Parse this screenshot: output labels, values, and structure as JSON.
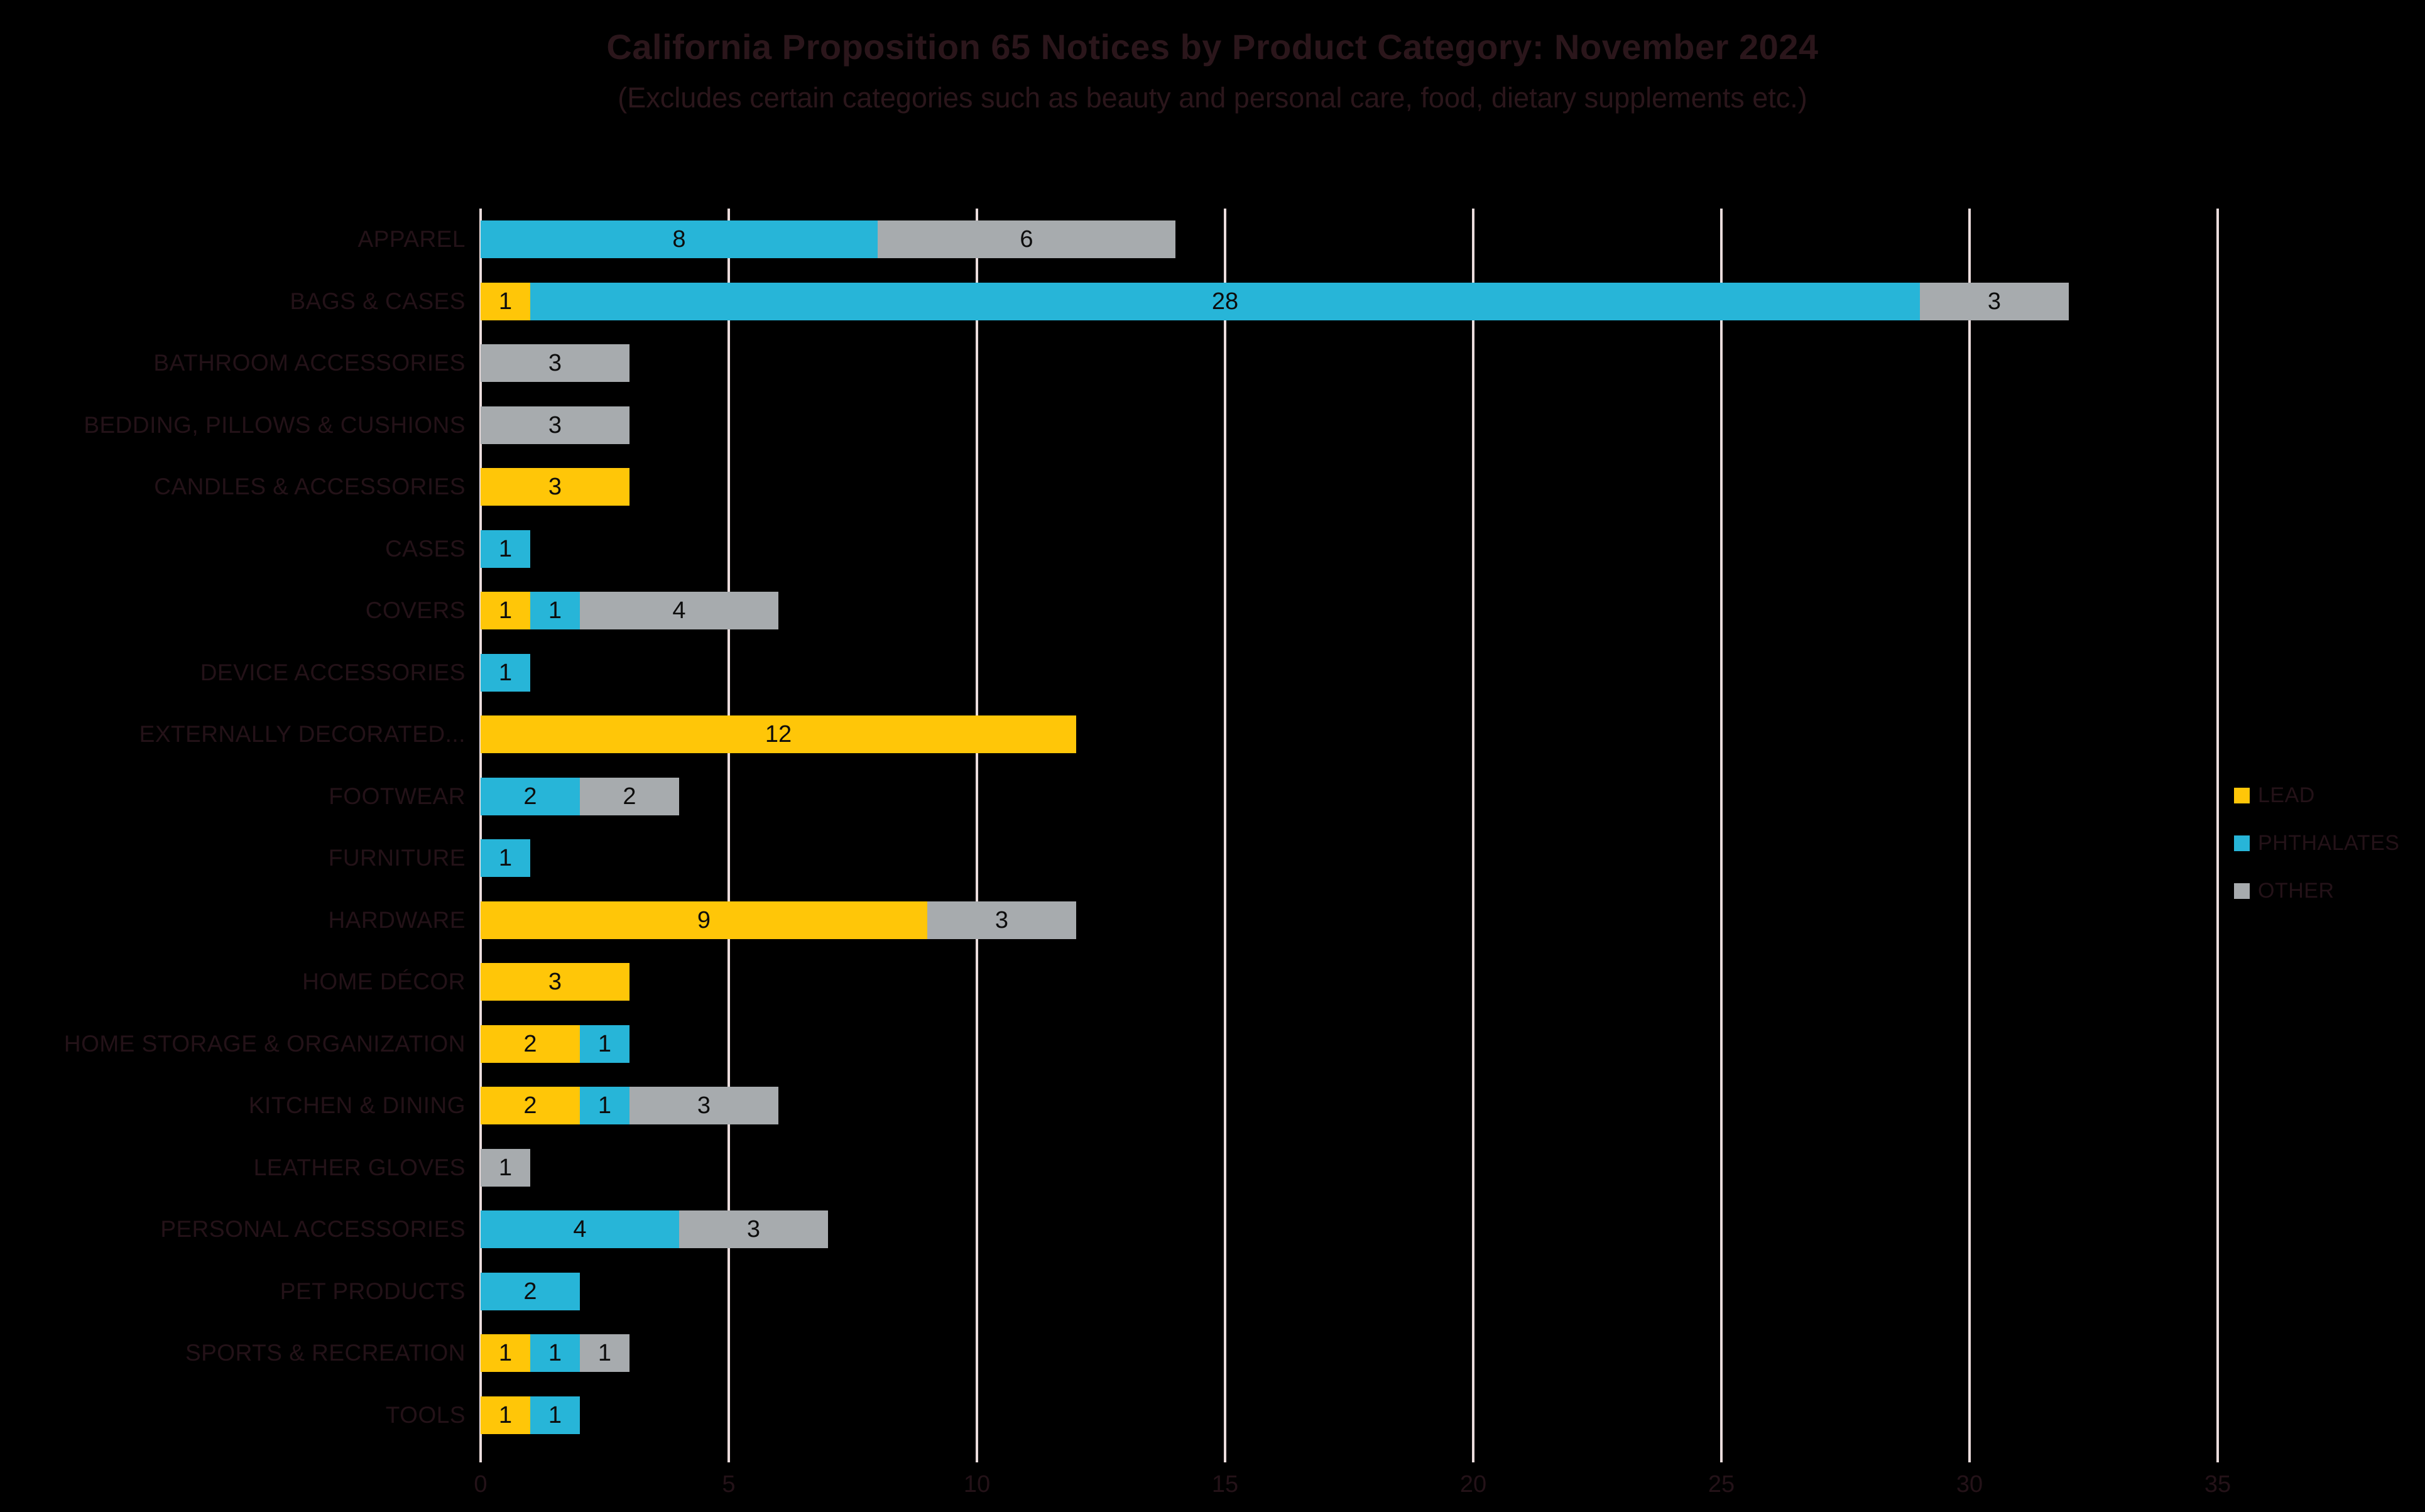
{
  "title": "California Proposition 65 Notices by Product Category: November 2024",
  "subtitle": "(Excludes certain categories such as beauty and personal care, food, dietary supplements etc.)",
  "colors": {
    "background": "#000000",
    "title_text": "#2B161B",
    "axis_text": "#241218",
    "value_text": "#0D0D0D",
    "gridline": "#EADCDC",
    "lead": "#FFC608",
    "phthalates": "#27B5D8",
    "other": "#A7ABAE"
  },
  "legend": {
    "position": "right",
    "entries": [
      {
        "label": "LEAD",
        "color_key": "lead"
      },
      {
        "label": "PHTHALATES",
        "color_key": "phthalates"
      },
      {
        "label": "OTHER",
        "color_key": "other"
      }
    ]
  },
  "chart_data": {
    "type": "bar",
    "orientation": "horizontal",
    "stacked": true,
    "title": "California Proposition 65 Notices by Product Category: November 2024",
    "xlabel": "",
    "ylabel": "",
    "xlim": [
      0,
      35
    ],
    "x_ticks": [
      0,
      5,
      10,
      15,
      20,
      25,
      30,
      35
    ],
    "grid": true,
    "legend_position": "right",
    "data_labels": "center of each nonzero segment",
    "categories": [
      "APPAREL",
      "BAGS & CASES",
      "BATHROOM ACCESSORIES",
      "BEDDING, PILLOWS & CUSHIONS",
      "CANDLES & ACCESSORIES",
      "CASES",
      "COVERS",
      "DEVICE ACCESSORIES",
      "EXTERNALLY DECORATED...",
      "FOOTWEAR",
      "FURNITURE",
      "HARDWARE",
      "HOME DÉCOR",
      "HOME STORAGE & ORGANIZATION",
      "KITCHEN & DINING",
      "LEATHER GLOVES",
      "PERSONAL ACCESSORIES",
      "PET PRODUCTS",
      "SPORTS & RECREATION",
      "TOOLS"
    ],
    "series": [
      {
        "name": "LEAD",
        "color_key": "lead",
        "values": [
          0,
          1,
          0,
          0,
          3,
          0,
          1,
          0,
          12,
          0,
          0,
          9,
          3,
          2,
          2,
          0,
          0,
          0,
          1,
          1
        ]
      },
      {
        "name": "PHTHALATES",
        "color_key": "phthalates",
        "values": [
          8,
          28,
          0,
          0,
          0,
          1,
          1,
          1,
          0,
          2,
          1,
          0,
          0,
          1,
          1,
          0,
          4,
          2,
          1,
          1
        ]
      },
      {
        "name": "OTHER",
        "color_key": "other",
        "values": [
          6,
          3,
          3,
          3,
          0,
          0,
          4,
          0,
          0,
          2,
          0,
          3,
          0,
          0,
          3,
          1,
          3,
          0,
          1,
          0
        ]
      }
    ]
  }
}
